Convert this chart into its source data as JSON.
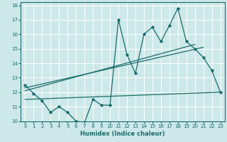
{
  "title": "",
  "xlabel": "Humidex (Indice chaleur)",
  "ylabel": "",
  "bg_color": "#cce8e8",
  "grid_color": "#ffffff",
  "line_color": "#1a6b6b",
  "xlim": [
    -0.5,
    23.5
  ],
  "ylim": [
    10,
    18.2
  ],
  "xticks": [
    0,
    1,
    2,
    3,
    4,
    5,
    6,
    7,
    8,
    9,
    10,
    11,
    12,
    13,
    14,
    15,
    16,
    17,
    18,
    19,
    20,
    21,
    22,
    23
  ],
  "yticks": [
    10,
    11,
    12,
    13,
    14,
    15,
    16,
    17,
    18
  ],
  "series1_x": [
    0,
    1,
    2,
    3,
    4,
    5,
    6,
    7,
    8,
    9,
    10,
    11,
    12,
    13,
    14,
    15,
    16,
    17,
    18,
    19,
    20,
    21,
    22,
    23
  ],
  "series1_y": [
    12.5,
    11.9,
    11.4,
    10.6,
    11.0,
    10.6,
    10.0,
    9.9,
    11.5,
    11.1,
    11.1,
    17.0,
    14.6,
    13.3,
    16.0,
    16.5,
    15.5,
    16.6,
    17.8,
    15.5,
    15.0,
    14.4,
    13.5,
    12.0
  ],
  "line1_x": [
    0,
    20
  ],
  "line1_y": [
    12.1,
    15.3
  ],
  "line2_x": [
    0,
    21
  ],
  "line2_y": [
    12.3,
    15.1
  ],
  "line3_x": [
    0,
    23
  ],
  "line3_y": [
    11.5,
    12.0
  ]
}
